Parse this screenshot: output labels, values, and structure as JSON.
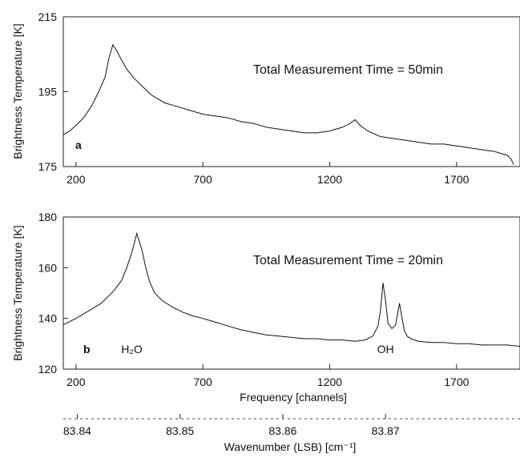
{
  "chart_data": [
    {
      "panel": "a",
      "type": "line",
      "annotation": "Total Measurement Time = 50min",
      "ylabel": "Brightness Temperature [K]",
      "xlabel": "",
      "xlim": [
        150,
        1950
      ],
      "ylim": [
        175,
        215
      ],
      "xticks": [
        200,
        700,
        1200,
        1700
      ],
      "yticks": [
        175,
        195,
        215
      ],
      "series": [
        {
          "x": [
            150,
            175,
            200,
            230,
            260,
            290,
            315,
            330,
            345,
            360,
            375,
            400,
            430,
            460,
            500,
            550,
            600,
            650,
            700,
            750,
            800,
            850,
            900,
            950,
            1000,
            1050,
            1100,
            1150,
            1200,
            1250,
            1280,
            1300,
            1320,
            1350,
            1400,
            1450,
            1500,
            1550,
            1600,
            1650,
            1700,
            1750,
            1800,
            1850,
            1900,
            1915,
            1925
          ],
          "y": [
            183.5,
            184.5,
            186,
            188,
            191,
            195,
            199,
            204,
            207.5,
            206,
            204,
            201,
            198.5,
            196.5,
            194,
            192,
            191,
            190,
            189,
            188.5,
            188,
            187,
            186.5,
            185.5,
            185,
            184.5,
            184,
            184,
            184.5,
            185.5,
            186.5,
            187.5,
            186,
            184.5,
            183,
            182.5,
            182,
            181.5,
            181,
            181,
            180.5,
            180,
            179.5,
            179,
            178,
            177,
            175.5
          ]
        }
      ]
    },
    {
      "panel": "b",
      "type": "line",
      "annotation": "Total Measurement Time = 20min",
      "ylabel": "Brightness Temperature [K]",
      "xlabel": "Frequency [channels]",
      "xlim": [
        150,
        1950
      ],
      "ylim": [
        120,
        180
      ],
      "xticks": [
        200,
        700,
        1200,
        1700
      ],
      "yticks": [
        120,
        140,
        160,
        180
      ],
      "peak_labels": [
        {
          "text": "H₂O",
          "x": 420
        },
        {
          "text": "OH",
          "x": 1420
        }
      ],
      "secondary_axis": {
        "label": "Wavenumber (LSB) [cm⁻¹]",
        "ticks": [
          "83.84",
          "83.85",
          "83.86",
          "83.87"
        ],
        "tick_channels": [
          205,
          610,
          1015,
          1420
        ]
      },
      "series": [
        {
          "x": [
            150,
            200,
            250,
            300,
            350,
            380,
            400,
            420,
            440,
            460,
            475,
            490,
            510,
            540,
            580,
            620,
            660,
            700,
            750,
            800,
            850,
            900,
            950,
            1000,
            1050,
            1100,
            1150,
            1200,
            1250,
            1300,
            1340,
            1370,
            1390,
            1400,
            1410,
            1420,
            1430,
            1445,
            1460,
            1475,
            1485,
            1495,
            1505,
            1520,
            1550,
            1600,
            1650,
            1700,
            1750,
            1800,
            1850,
            1900,
            1950
          ],
          "y": [
            137.5,
            140,
            143,
            146,
            151,
            155,
            160,
            166,
            173.5,
            167,
            160,
            154.5,
            150,
            147,
            144.5,
            142.5,
            141,
            140,
            138.5,
            137,
            135.5,
            134.5,
            133.5,
            133,
            132.5,
            132,
            132,
            131.5,
            131.5,
            131,
            131.5,
            133,
            137,
            143,
            154,
            147,
            138,
            136,
            137.5,
            146,
            140,
            135,
            133,
            132,
            131,
            130.5,
            130.5,
            130,
            130,
            129.5,
            129.5,
            129.5,
            129
          ]
        }
      ]
    }
  ]
}
